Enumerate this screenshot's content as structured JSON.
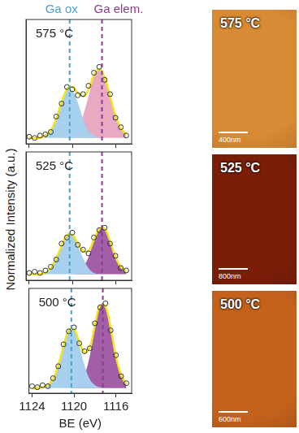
{
  "chart_data": [
    {
      "type": "line",
      "title": "575 °C",
      "x": [
        1124,
        1123.5,
        1123,
        1122.5,
        1122,
        1121.5,
        1121,
        1120.5,
        1120,
        1119.5,
        1119,
        1118.5,
        1118,
        1117.5,
        1117,
        1116.5,
        1116,
        1115.5,
        1115
      ],
      "series": [
        {
          "type": "scatter",
          "marker": "circle",
          "color": "#333333",
          "values": [
            0.01,
            0,
            0.02,
            0.03,
            0.05,
            0.18,
            0.29,
            0.43,
            0.41,
            0.36,
            0.37,
            0.44,
            0.55,
            0.6,
            0.49,
            0.37,
            0.17,
            0.09,
            0.02
          ]
        },
        {
          "type": "line",
          "color": "#f3e31a",
          "values": [
            0,
            0,
            0,
            0.02,
            0.06,
            0.16,
            0.3,
            0.41,
            0.43,
            0.38,
            0.35,
            0.41,
            0.53,
            0.58,
            0.51,
            0.35,
            0.19,
            0.08,
            0.03
          ]
        },
        {
          "type": "area",
          "color": "#a6d0ee",
          "values": [
            0,
            0,
            0,
            0.02,
            0.06,
            0.16,
            0.3,
            0.4,
            0.4,
            0.3,
            0.16,
            0.06,
            0.02,
            0,
            0,
            0,
            0,
            0,
            0
          ]
        },
        {
          "type": "area",
          "color": "#eaa9c2",
          "values": [
            0,
            0,
            0,
            0,
            0,
            0,
            0,
            0.01,
            0.03,
            0.08,
            0.19,
            0.35,
            0.51,
            0.58,
            0.51,
            0.35,
            0.19,
            0.08,
            0.03
          ]
        }
      ],
      "xlim": [
        1124.3,
        1114.5
      ],
      "xticks": [
        1124,
        1120,
        1116
      ],
      "ylim": [
        -0.05,
        1
      ],
      "grid": false,
      "tick_labels": false
    },
    {
      "type": "line",
      "title": "525 °C",
      "x": [
        1124,
        1123.5,
        1123,
        1122.5,
        1122,
        1121.5,
        1121,
        1120.5,
        1120,
        1119.5,
        1119,
        1118.5,
        1118,
        1117.5,
        1117,
        1116.5,
        1116,
        1115.5,
        1115
      ],
      "series": [
        {
          "type": "scatter",
          "marker": "circle",
          "color": "#333333",
          "values": [
            0.01,
            0.02,
            0.01,
            0.03,
            0.06,
            0.12,
            0.25,
            0.3,
            0.34,
            0.24,
            0.2,
            0.17,
            0.3,
            0.36,
            0.38,
            0.25,
            0.15,
            0.05,
            0.03
          ]
        },
        {
          "type": "line",
          "color": "#f3e31a",
          "values": [
            0,
            0,
            0,
            0.01,
            0.05,
            0.13,
            0.23,
            0.32,
            0.32,
            0.25,
            0.19,
            0.19,
            0.28,
            0.37,
            0.37,
            0.27,
            0.14,
            0.06,
            0.02
          ]
        },
        {
          "type": "area",
          "color": "#a6d0ee",
          "values": [
            0,
            0,
            0,
            0.01,
            0.05,
            0.13,
            0.23,
            0.32,
            0.32,
            0.23,
            0.13,
            0.05,
            0.01,
            0,
            0,
            0,
            0,
            0,
            0
          ]
        },
        {
          "type": "area",
          "color": "#a35ea8",
          "values": [
            0,
            0,
            0,
            0,
            0,
            0,
            0,
            0,
            0,
            0.02,
            0.06,
            0.14,
            0.27,
            0.37,
            0.37,
            0.27,
            0.14,
            0.06,
            0.02
          ]
        }
      ],
      "xlim": [
        1124.3,
        1114.5
      ],
      "xticks": [
        1124,
        1120,
        1116
      ],
      "ylim": [
        -0.05,
        1
      ],
      "grid": false,
      "tick_labels": false
    },
    {
      "type": "line",
      "title": "500 °C",
      "x_label": "BE (eV)",
      "x": [
        1124,
        1123.5,
        1123,
        1122.5,
        1122,
        1121.5,
        1121,
        1120.5,
        1120,
        1119.5,
        1119,
        1118.5,
        1118,
        1117.5,
        1117,
        1116.5,
        1116,
        1115.5,
        1115
      ],
      "series": [
        {
          "type": "scatter",
          "marker": "circle",
          "color": "#333333",
          "values": [
            0.02,
            0.01,
            0.03,
            0.02,
            0.1,
            0.22,
            0.44,
            0.57,
            0.61,
            0.45,
            0.37,
            0.4,
            0.65,
            0.81,
            0.85,
            0.58,
            0.33,
            0.12,
            0.05
          ]
        },
        {
          "type": "line",
          "color": "#f3e31a",
          "values": [
            0,
            0,
            0.01,
            0.03,
            0.09,
            0.23,
            0.42,
            0.58,
            0.59,
            0.46,
            0.36,
            0.41,
            0.63,
            0.83,
            0.82,
            0.6,
            0.32,
            0.13,
            0.04
          ]
        },
        {
          "type": "area",
          "color": "#a6d0ee",
          "values": [
            0,
            0,
            0.01,
            0.03,
            0.09,
            0.23,
            0.42,
            0.58,
            0.58,
            0.42,
            0.23,
            0.09,
            0.03,
            0.01,
            0,
            0,
            0,
            0,
            0
          ]
        },
        {
          "type": "area",
          "color": "#a35ea8",
          "values": [
            0,
            0,
            0,
            0,
            0,
            0,
            0,
            0,
            0.01,
            0.04,
            0.13,
            0.32,
            0.6,
            0.82,
            0.82,
            0.6,
            0.32,
            0.13,
            0.04
          ]
        }
      ],
      "xlim": [
        1124.3,
        1114.5
      ],
      "xticks": [
        1124,
        1120,
        1116
      ],
      "ylim": [
        -0.05,
        1
      ],
      "grid": false,
      "tick_labels": "x"
    }
  ],
  "shared": {
    "y_label": "Normalized Intensity (a.u.)",
    "reference_lines": [
      {
        "x": 1120.25,
        "label": "Ga ox",
        "color": "#4a9fd0",
        "line_style": "dashed"
      },
      {
        "x": 1117.25,
        "label": "Ga elem.",
        "color": "#8a3d8f",
        "line_style": "dashed"
      }
    ]
  },
  "images": [
    {
      "label": "575 °C",
      "scale_bar": "400nm",
      "color": "#d98a34"
    },
    {
      "label": "525 °C",
      "scale_bar": "800nm",
      "color": "#7a1e08"
    },
    {
      "label": "500 °C",
      "scale_bar": "600nm",
      "color": "#c4621c"
    }
  ]
}
